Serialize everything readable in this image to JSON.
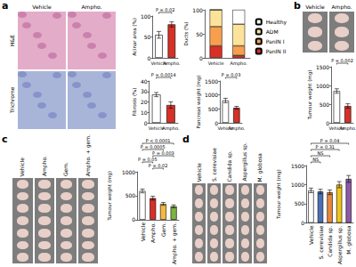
{
  "panels": [
    {
      "label": "a",
      "images": {
        "columns": [
          "Vehicle",
          "Ampho."
        ],
        "rows": [
          "H&E",
          "Trichrome"
        ]
      }
    },
    {
      "label": "b",
      "images": {
        "columns": [
          "Vehicle",
          "Ampho."
        ]
      }
    },
    {
      "label": "c",
      "images": {
        "columns": [
          "Vehicle",
          "Ampho.",
          "Gem.",
          "Ampho. + gem."
        ]
      }
    },
    {
      "label": "d",
      "images": {
        "columns": [
          "Vehicle",
          "S. cerevisiae",
          "Candida sp.",
          "Aspergillus sp.",
          "M. globosa"
        ]
      }
    }
  ],
  "chart_data": [
    {
      "type": "bar",
      "ylabel": "Acinar area (%)",
      "categories": [
        "Vehicle",
        "Ampho."
      ],
      "values": [
        55,
        80
      ],
      "errors": [
        8,
        6
      ],
      "colors": [
        "#ffffff",
        "#d73027"
      ],
      "ylim": [
        0,
        100
      ],
      "yticks": [
        0,
        50,
        100
      ],
      "grid": false,
      "comparisons": [
        {
          "from": 0,
          "to": 1,
          "label": "P = 0.02"
        }
      ]
    },
    {
      "type": "bar",
      "ylabel": "Fibrosis (%)",
      "categories": [
        "Vehicle",
        "Ampho."
      ],
      "values": [
        27,
        17
      ],
      "errors": [
        2,
        3
      ],
      "colors": [
        "#ffffff",
        "#d73027"
      ],
      "ylim": [
        0,
        40
      ],
      "yticks": [
        0,
        10,
        20,
        30,
        40
      ],
      "grid": false,
      "comparisons": [
        {
          "from": 0,
          "to": 1,
          "label": "P = 0.0014"
        }
      ]
    },
    {
      "type": "bar",
      "ylabel": "Ducts (%)",
      "categories": [
        "Vehicle",
        "Ampho."
      ],
      "stacked": true,
      "series": [
        {
          "name": "Healthy",
          "color": "#ffffff",
          "values": [
            0,
            30
          ]
        },
        {
          "name": "ADM",
          "color": "#fde29a",
          "values": [
            35,
            45
          ]
        },
        {
          "name": "PanIN I",
          "color": "#f6a04d",
          "values": [
            40,
            20
          ]
        },
        {
          "name": "PanIN II",
          "color": "#d73027",
          "values": [
            25,
            5
          ]
        }
      ],
      "ylim": [
        0,
        100
      ],
      "yticks": [
        0,
        50,
        100
      ],
      "grid": false,
      "legend": "right"
    },
    {
      "type": "bar",
      "ylabel": "Pancreas weight (mg)",
      "categories": [
        "Vehicle",
        "Ampho."
      ],
      "values": [
        800,
        540
      ],
      "errors": [
        80,
        50
      ],
      "colors": [
        "#ffffff",
        "#d73027"
      ],
      "ylim": [
        0,
        1500
      ],
      "yticks": [
        0,
        500,
        1000,
        1500
      ],
      "grid": false,
      "comparisons": [
        {
          "from": 0,
          "to": 1,
          "label": "P = 0.03"
        }
      ]
    },
    {
      "type": "bar",
      "ylabel": "Tumour weight (mg)",
      "categories": [
        "Vehicle",
        "Ampho."
      ],
      "values": [
        850,
        450
      ],
      "errors": [
        60,
        60
      ],
      "colors": [
        "#ffffff",
        "#d73027"
      ],
      "ylim": [
        0,
        1500
      ],
      "yticks": [
        0,
        500,
        1000,
        1500
      ],
      "grid": false,
      "comparisons": [
        {
          "from": 0,
          "to": 1,
          "label": "P = 0.002"
        }
      ]
    },
    {
      "type": "bar",
      "ylabel": "Tumour weight (mg)",
      "categories": [
        "Vehicle",
        "Ampho.",
        "Gem.",
        "Ampho. + gem."
      ],
      "values": [
        600,
        450,
        330,
        280
      ],
      "errors": [
        40,
        40,
        30,
        30
      ],
      "colors": [
        "#ffffff",
        "#d73027",
        "#f5b942",
        "#7cb342"
      ],
      "ylim": [
        0,
        1000
      ],
      "yticks": [
        0,
        500,
        1000
      ],
      "grid": false,
      "comparisons": [
        {
          "from": 0,
          "to": 3,
          "label": "P < 0.0001"
        },
        {
          "from": 0,
          "to": 2,
          "label": "P = 0.0005"
        },
        {
          "from": 1,
          "to": 3,
          "label": "P = 0.003"
        },
        {
          "from": 0,
          "to": 1,
          "label": "P = 0.05"
        },
        {
          "from": 1,
          "to": 2,
          "label": "P = 0.02"
        }
      ]
    },
    {
      "type": "bar",
      "ylabel": "Tumour weight (mg)",
      "categories": [
        "Vehicle",
        "S. cerevisiae",
        "Candida sp.",
        "Aspergillus sp.",
        "M. globosa"
      ],
      "values": [
        850,
        820,
        800,
        1000,
        1150
      ],
      "errors": [
        60,
        60,
        60,
        80,
        90
      ],
      "colors": [
        "#ffffff",
        "#4a6fb5",
        "#e6883c",
        "#f0c419",
        "#8e5aa8"
      ],
      "ylim": [
        0,
        1500
      ],
      "yticks": [
        0,
        500,
        1000,
        1500
      ],
      "grid": false,
      "comparisons": [
        {
          "from": 0,
          "to": 4,
          "label": "P = 0.04"
        },
        {
          "from": 0,
          "to": 3,
          "label": "P = 0.31"
        },
        {
          "from": 0,
          "to": 2,
          "label": "NS"
        },
        {
          "from": 0,
          "to": 1,
          "label": "NS"
        }
      ]
    }
  ]
}
